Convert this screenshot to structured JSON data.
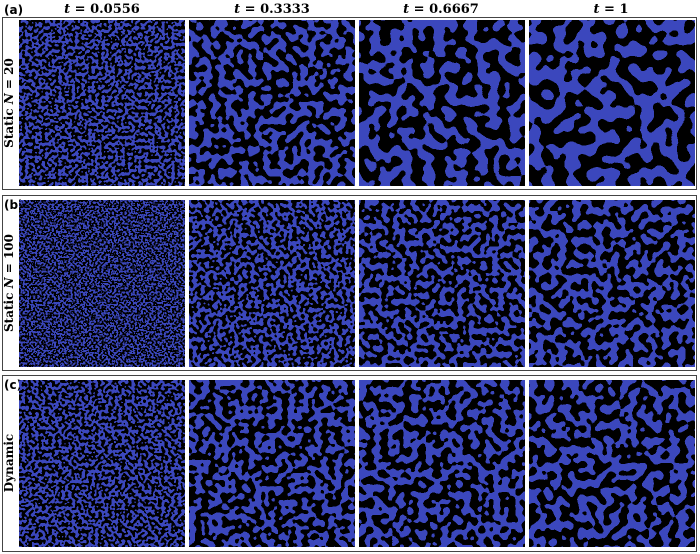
{
  "columns": [
    {
      "var": "t",
      "eq": " = 0.0556"
    },
    {
      "var": "t",
      "eq": " = 0.3333"
    },
    {
      "var": "t",
      "eq": " = 0.6667"
    },
    {
      "var": "t",
      "eq": " = 1"
    }
  ],
  "rows": [
    {
      "tag": "(a)",
      "label_pre": "Static ",
      "label_var": "N",
      "label_post": " = 20"
    },
    {
      "tag": "(b)",
      "label_pre": "Static ",
      "label_var": "N",
      "label_post": " = 100"
    },
    {
      "tag": "(c)",
      "label_pre": "Dynamic",
      "label_var": "",
      "label_post": ""
    }
  ],
  "colors": {
    "blue": "#3b47bd",
    "red": "#c01e3a",
    "interface": "#f2dfe2"
  }
}
